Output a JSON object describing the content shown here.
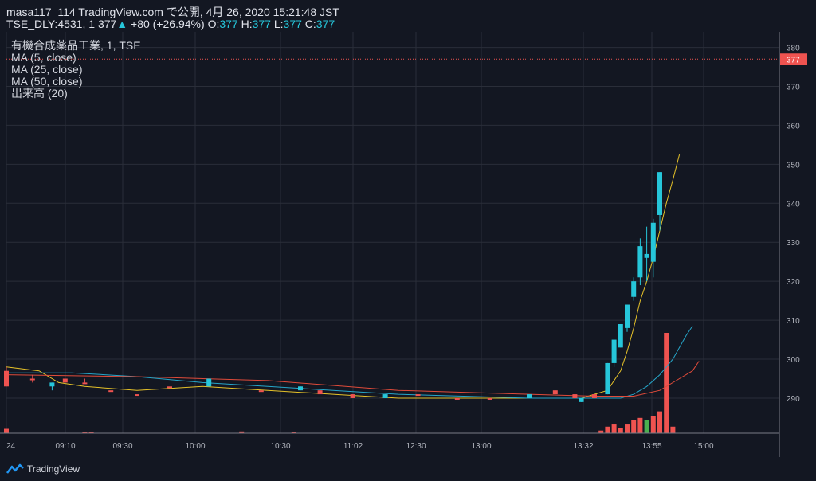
{
  "header": {
    "publish_line": "masa117_114 TradingView.com で公開, 4月 26, 2020 15:21:48 JST",
    "symbol": "TSE_DLY:4531, 1",
    "last": "377",
    "change": "+80 (+26.94%)",
    "o_label": "O:",
    "o_value": "377",
    "h_label": "H:",
    "h_value": "377",
    "l_label": "L:",
    "l_value": "377",
    "c_label": "C:",
    "c_value": "377"
  },
  "legend": {
    "series_title": "有機合成薬品工業, 1, TSE",
    "ma5": "MA (5, close)",
    "ma25": "MA (25, close)",
    "ma50": "MA (50, close)",
    "volume": "出来高 (20)"
  },
  "brand": "TradingView",
  "colors": {
    "background": "#131722",
    "grid": "#2a2e39",
    "up": "#26c6da",
    "down": "#ef5350",
    "ma5": "#e6c229",
    "ma25": "#26a6c9",
    "ma50": "#e04b3a",
    "volume_highlight": "#4caf50",
    "price_line": "#ef5350"
  },
  "chart_data": {
    "type": "candlestick",
    "title": "有機合成薬品工業, 1, TSE",
    "y_axis": {
      "ylim": [
        281,
        384
      ],
      "ticks": [
        290,
        300,
        310,
        320,
        330,
        340,
        350,
        360,
        370,
        380
      ],
      "side": "right"
    },
    "current_price": 377,
    "x_tick_labels": [
      "24",
      "09:10",
      "09:30",
      "10:00",
      "10:30",
      "11:02",
      "12:30",
      "13:00",
      "13:32",
      "13:55",
      "15:00"
    ],
    "grid": true,
    "candles": [
      {
        "x": 0,
        "open": 297,
        "high": 298,
        "low": 293,
        "close": 293
      },
      {
        "x": 4,
        "open": 295,
        "high": 296,
        "low": 294,
        "close": 295
      },
      {
        "x": 7,
        "open": 293,
        "high": 294,
        "low": 292,
        "close": 294
      },
      {
        "x": 9,
        "open": 295,
        "high": 295,
        "low": 294,
        "close": 294
      },
      {
        "x": 12,
        "open": 294,
        "high": 295,
        "low": 294,
        "close": 294
      },
      {
        "x": 16,
        "open": 292,
        "high": 292,
        "low": 292,
        "close": 292
      },
      {
        "x": 20,
        "open": 291,
        "high": 291,
        "low": 291,
        "close": 291
      },
      {
        "x": 25,
        "open": 293,
        "high": 293,
        "low": 293,
        "close": 293
      },
      {
        "x": 31,
        "open": 293,
        "high": 295,
        "low": 293,
        "close": 295
      },
      {
        "x": 39,
        "open": 292,
        "high": 292,
        "low": 292,
        "close": 292
      },
      {
        "x": 45,
        "open": 292,
        "high": 293,
        "low": 292,
        "close": 293
      },
      {
        "x": 48,
        "open": 292,
        "high": 292,
        "low": 291,
        "close": 291
      },
      {
        "x": 53,
        "open": 291,
        "high": 291,
        "low": 290,
        "close": 290
      },
      {
        "x": 58,
        "open": 290,
        "high": 291,
        "low": 290,
        "close": 291
      },
      {
        "x": 63,
        "open": 291,
        "high": 291,
        "low": 291,
        "close": 291
      },
      {
        "x": 69,
        "open": 290,
        "high": 290,
        "low": 290,
        "close": 290
      },
      {
        "x": 74,
        "open": 290,
        "high": 290,
        "low": 290,
        "close": 290
      },
      {
        "x": 80,
        "open": 290,
        "high": 291,
        "low": 290,
        "close": 291
      },
      {
        "x": 84,
        "open": 292,
        "high": 292,
        "low": 291,
        "close": 291
      },
      {
        "x": 87,
        "open": 291,
        "high": 291,
        "low": 290,
        "close": 290
      },
      {
        "x": 88,
        "open": 289,
        "high": 290,
        "low": 289,
        "close": 290
      },
      {
        "x": 90,
        "open": 291,
        "high": 291,
        "low": 290,
        "close": 290
      },
      {
        "x": 92,
        "open": 291,
        "high": 299,
        "low": 291,
        "close": 299
      },
      {
        "x": 93,
        "open": 299,
        "high": 305,
        "low": 298,
        "close": 305
      },
      {
        "x": 94,
        "open": 303,
        "high": 309,
        "low": 303,
        "close": 309
      },
      {
        "x": 95,
        "open": 308,
        "high": 314,
        "low": 307,
        "close": 314
      },
      {
        "x": 96,
        "open": 316,
        "high": 321,
        "low": 315,
        "close": 320
      },
      {
        "x": 97,
        "open": 321,
        "high": 331,
        "low": 319,
        "close": 329
      },
      {
        "x": 98,
        "open": 326,
        "high": 334,
        "low": 320,
        "close": 327
      },
      {
        "x": 99,
        "open": 325,
        "high": 336,
        "low": 321,
        "close": 335
      },
      {
        "x": 100,
        "open": 337,
        "high": 348,
        "low": 333,
        "close": 348
      }
    ],
    "volume": [
      {
        "x": 0,
        "value": 1
      },
      {
        "x": 12,
        "value": 0.3
      },
      {
        "x": 13,
        "value": 0.3
      },
      {
        "x": 36,
        "value": 0.4
      },
      {
        "x": 44,
        "value": 0.3
      },
      {
        "x": 91,
        "value": 0.6
      },
      {
        "x": 92,
        "value": 1.5
      },
      {
        "x": 93,
        "value": 2
      },
      {
        "x": 94,
        "value": 1.2
      },
      {
        "x": 95,
        "value": 2
      },
      {
        "x": 96,
        "value": 3
      },
      {
        "x": 97,
        "value": 3.5
      },
      {
        "x": 98,
        "value": 3
      },
      {
        "x": 99,
        "value": 4
      },
      {
        "x": 100,
        "value": 5
      },
      {
        "x": 101,
        "value": 23
      },
      {
        "x": 102,
        "value": 1.5
      }
    ],
    "series": [
      {
        "name": "MA (5, close)",
        "points": [
          [
            0,
            298
          ],
          [
            5,
            297
          ],
          [
            8,
            294
          ],
          [
            12,
            293
          ],
          [
            20,
            292
          ],
          [
            30,
            293
          ],
          [
            40,
            292
          ],
          [
            50,
            291
          ],
          [
            60,
            290
          ],
          [
            70,
            290
          ],
          [
            80,
            290
          ],
          [
            88,
            290
          ],
          [
            90,
            291
          ],
          [
            92,
            292
          ],
          [
            94,
            297
          ],
          [
            95,
            302
          ],
          [
            96,
            308
          ],
          [
            97,
            315
          ],
          [
            98,
            320
          ],
          [
            99,
            326
          ],
          [
            100,
            333
          ],
          [
            101,
            340
          ],
          [
            102,
            346
          ],
          [
            103,
            352.5
          ]
        ]
      },
      {
        "name": "MA (25, close)",
        "points": [
          [
            0,
            296.5
          ],
          [
            10,
            296.5
          ],
          [
            20,
            295.5
          ],
          [
            30,
            294
          ],
          [
            40,
            293
          ],
          [
            50,
            292
          ],
          [
            60,
            291
          ],
          [
            70,
            290.5
          ],
          [
            80,
            290
          ],
          [
            90,
            290
          ],
          [
            94,
            290
          ],
          [
            96,
            291
          ],
          [
            98,
            293
          ],
          [
            100,
            296
          ],
          [
            102,
            300
          ],
          [
            104,
            306
          ],
          [
            105,
            308.5
          ]
        ]
      },
      {
        "name": "MA (50, close)",
        "points": [
          [
            0,
            296
          ],
          [
            20,
            295.5
          ],
          [
            40,
            294.5
          ],
          [
            60,
            292
          ],
          [
            70,
            291.5
          ],
          [
            80,
            291
          ],
          [
            90,
            290.5
          ],
          [
            96,
            290.5
          ],
          [
            100,
            292
          ],
          [
            103,
            295
          ],
          [
            105,
            297
          ],
          [
            106,
            299.5
          ]
        ]
      }
    ]
  }
}
